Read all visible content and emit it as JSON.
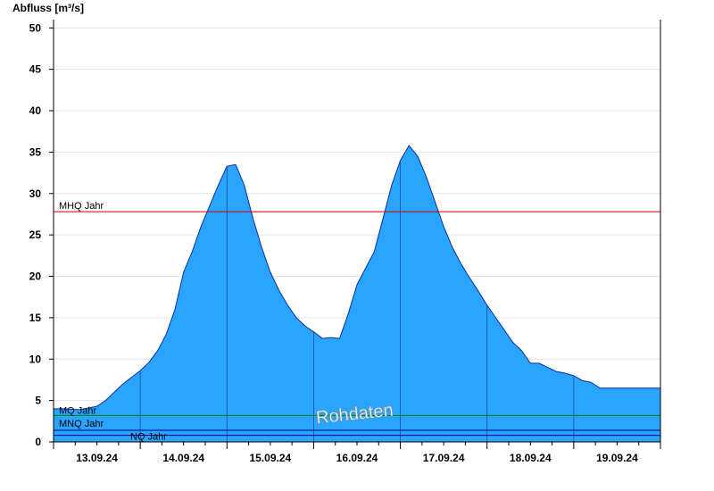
{
  "chart_data": {
    "type": "area",
    "ylabel": "Abfluss [m³/s]",
    "ylim": [
      0,
      51
    ],
    "yticks": [
      0,
      5,
      10,
      15,
      20,
      25,
      30,
      35,
      40,
      45,
      50
    ],
    "xlim": [
      0,
      7
    ],
    "xticks": [
      {
        "label": "13.09.24",
        "pos": 0.5
      },
      {
        "label": "14.09.24",
        "pos": 1.5
      },
      {
        "label": "15.09.24",
        "pos": 2.5
      },
      {
        "label": "16.09.24",
        "pos": 3.5
      },
      {
        "label": "17.09.24",
        "pos": 4.5
      },
      {
        "label": "18.09.24",
        "pos": 5.5
      },
      {
        "label": "19.09.24",
        "pos": 6.5
      }
    ],
    "grid": true,
    "series": [
      {
        "values_x": [
          0,
          0.1,
          0.3,
          0.5,
          0.6,
          0.7,
          0.8,
          0.9,
          1.0,
          1.1,
          1.2,
          1.3,
          1.4,
          1.5,
          1.6,
          1.7,
          1.8,
          1.9,
          2.0,
          2.1,
          2.2,
          2.3,
          2.4,
          2.5,
          2.6,
          2.7,
          2.8,
          2.9,
          3.0,
          3.1,
          3.2,
          3.3,
          3.4,
          3.5,
          3.6,
          3.7,
          3.8,
          3.9,
          4.0,
          4.1,
          4.2,
          4.3,
          4.4,
          4.5,
          4.6,
          4.7,
          4.8,
          4.9,
          5.0,
          5.1,
          5.2,
          5.3,
          5.4,
          5.5,
          5.6,
          5.7,
          5.8,
          5.9,
          6.0,
          6.1,
          6.2,
          6.3,
          6.4,
          6.5,
          6.6,
          6.7,
          6.8,
          6.9,
          7.0
        ],
        "values_y": [
          4.0,
          4.0,
          3.9,
          4.3,
          5.0,
          6.0,
          7.0,
          7.8,
          8.6,
          9.6,
          11.0,
          13.0,
          16.0,
          20.5,
          23.0,
          26.0,
          28.5,
          31.0,
          33.3,
          33.5,
          31.0,
          27.0,
          23.5,
          20.5,
          18.3,
          16.5,
          15.0,
          14.0,
          13.3,
          12.5,
          12.6,
          12.5,
          15.5,
          19.0,
          21.0,
          23.0,
          27.0,
          31.0,
          34.0,
          35.8,
          34.5,
          32.0,
          29.0,
          26.0,
          23.5,
          21.5,
          19.8,
          18.2,
          16.5,
          15.0,
          13.5,
          12.0,
          11.0,
          9.5,
          9.5,
          9.0,
          8.5,
          8.3,
          8.0,
          7.4,
          7.2,
          6.5,
          6.5,
          6.5,
          6.5,
          6.5,
          6.5,
          6.5,
          6.5
        ],
        "color": "#29a5ff"
      }
    ],
    "reference_lines": [
      {
        "label": "MHQ Jahr",
        "value": 27.8,
        "color": "#cc0000"
      },
      {
        "label": "MQ Jahr",
        "value": 3.2,
        "color": "#008000"
      },
      {
        "label": "MNQ Jahr",
        "value": 1.4,
        "color": "#000080"
      },
      {
        "label": "NQ Jahr",
        "value": 0.8,
        "color": "#000080"
      }
    ],
    "watermark": "Rohdaten"
  }
}
